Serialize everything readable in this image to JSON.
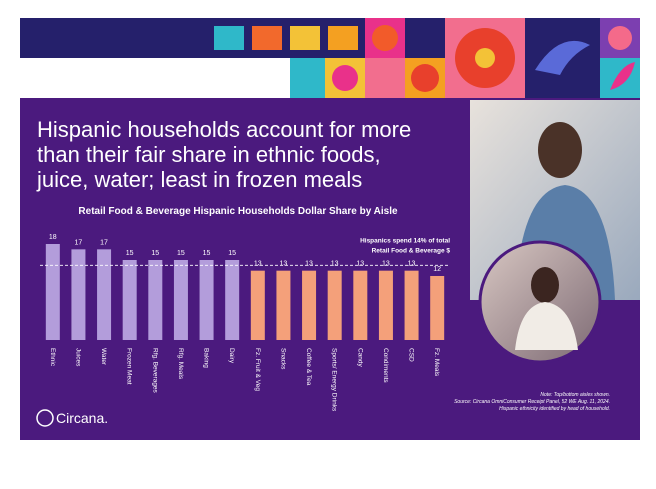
{
  "header": {
    "title": [
      "Hispanic households account for more",
      "than their fair share in ethnic foods,",
      "juice, water; least in frozen meals"
    ]
  },
  "chart_data": {
    "type": "bar",
    "title": "Retail Food & Beverage Hispanic Households Dollar Share by Aisle",
    "categories": [
      "Ethnic",
      "Juices",
      "Water",
      "Frozen Meat",
      "Rfg. Beverages",
      "Rfg. Meals",
      "Baking",
      "Dairy",
      "Fz. Fruit & Veg",
      "Snacks",
      "Coffee & Tea",
      "Sports/ Energy Drinks",
      "Candy",
      "Condiments",
      "CSD",
      "Fz. Meals"
    ],
    "values": [
      18,
      17,
      17,
      15,
      15,
      15,
      15,
      15,
      13,
      13,
      13,
      13,
      13,
      13,
      13,
      12
    ],
    "colors": [
      "#b39ddb",
      "#b39ddb",
      "#b39ddb",
      "#b39ddb",
      "#b39ddb",
      "#b39ddb",
      "#b39ddb",
      "#b39ddb",
      "#f4a07a",
      "#f4a07a",
      "#f4a07a",
      "#f4a07a",
      "#f4a07a",
      "#f4a07a",
      "#f4a07a",
      "#f4a07a"
    ],
    "ylim": [
      0,
      18
    ],
    "reference_line": {
      "value": 14,
      "label": [
        "Hispanics spend 14% of total",
        "Retail Food & Beverage $"
      ]
    }
  },
  "footer": {
    "logo": "Circana.",
    "notes": [
      "Note: Top/bottom aisles shown.",
      "Source: Circana OmniConsumer Receipt Panel, 52 WE Aug. 11, 2024.",
      "Hispanic ethnicity identified by head of household."
    ]
  }
}
